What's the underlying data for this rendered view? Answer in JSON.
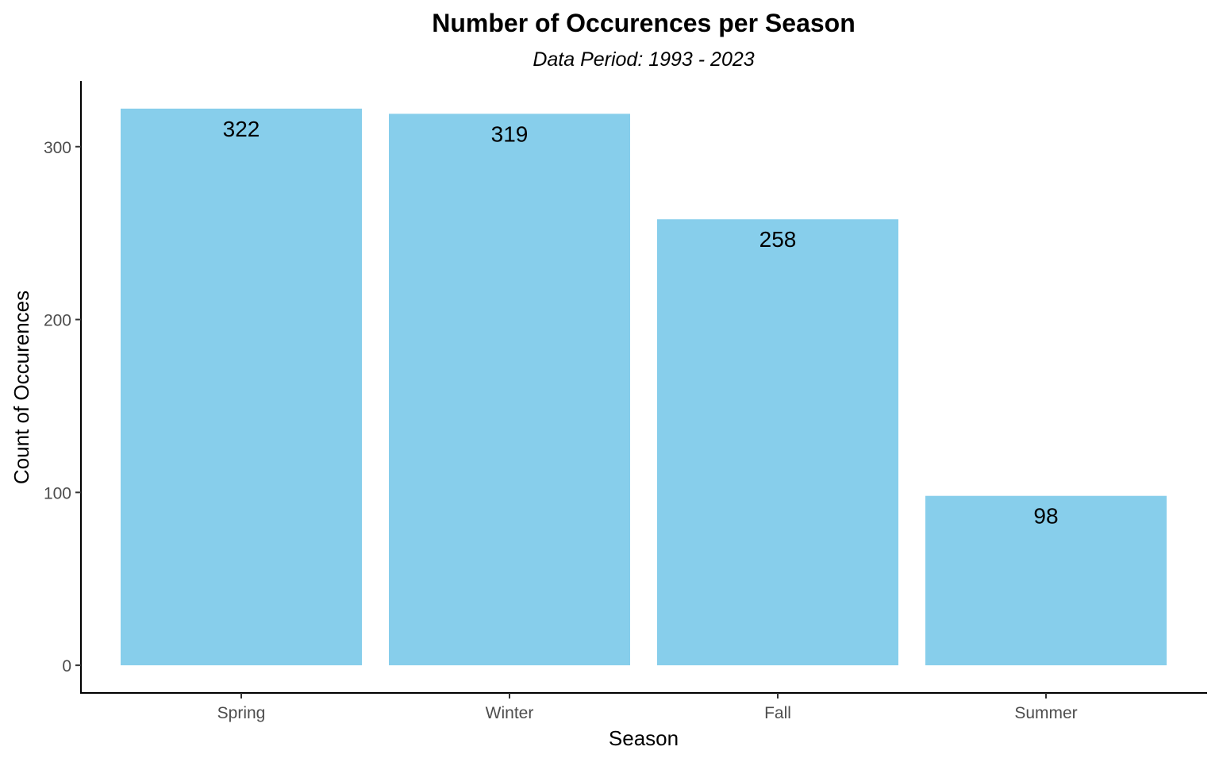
{
  "chart_data": {
    "type": "bar",
    "title": "Number of Occurences per Season",
    "subtitle": "Data Period: 1993 - 2023",
    "xlabel": "Season",
    "ylabel": "Count of Occurences",
    "categories": [
      "Spring",
      "Winter",
      "Fall",
      "Summer"
    ],
    "values": [
      322,
      319,
      258,
      98
    ],
    "data_labels": [
      "322",
      "319",
      "258",
      "98"
    ],
    "y_ticks": [
      0,
      100,
      200,
      300
    ],
    "y_tick_labels": [
      "0",
      "100",
      "200",
      "300"
    ],
    "ylim": [
      -16,
      338
    ],
    "bar_color": "#87CEEB",
    "grid": false,
    "legend": "none"
  }
}
